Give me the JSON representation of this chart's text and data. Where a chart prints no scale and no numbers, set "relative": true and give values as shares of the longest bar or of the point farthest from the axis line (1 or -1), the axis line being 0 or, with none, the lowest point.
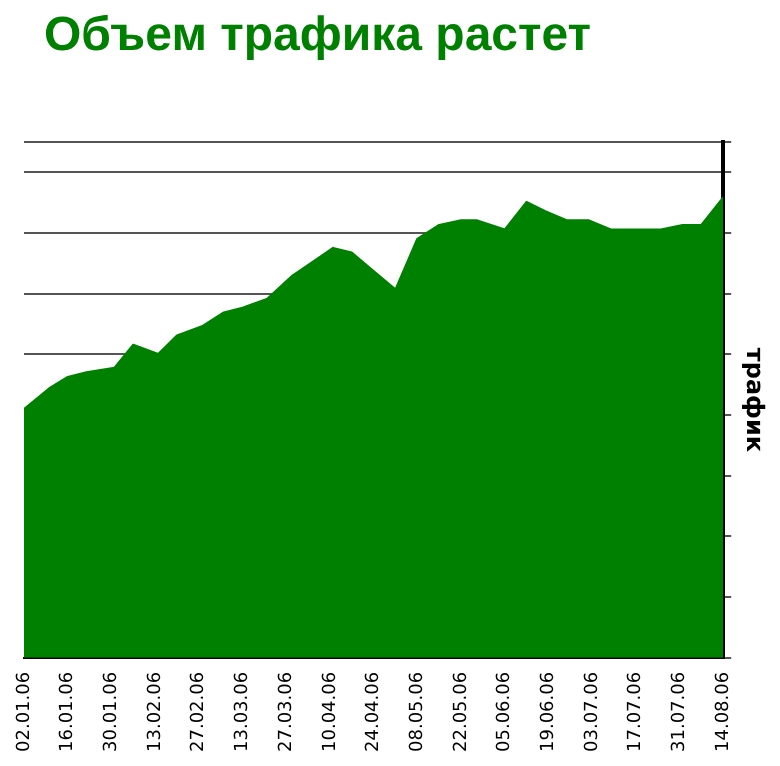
{
  "chart_data": {
    "type": "area",
    "title": "Объем трафика растет",
    "ylabel": "трафик",
    "relative": true,
    "grid": "y",
    "x": [
      "--01-02",
      "--01-10",
      "--01-16",
      "--01-22",
      "--01-31",
      "--02-06",
      "--02-14",
      "--02-20",
      "--02-28",
      "--03-07",
      "--03-13",
      "--03-21",
      "--03-29",
      "--04-11",
      "--04-17",
      "--04-24",
      "--05-01",
      "--05-08",
      "--05-15",
      "--05-22",
      "--05-27",
      "--06-05",
      "--06-12",
      "--06-18",
      "--06-25",
      "--07-02",
      "--07-09",
      "--07-18",
      "--07-25",
      "--08-01",
      "--08-07",
      "--08-14"
    ],
    "xlim": [
      "--01-02",
      "--08-14"
    ],
    "xticks": [
      {
        "value": "--01-02",
        "label": "02.01.06"
      },
      {
        "value": "--01-16",
        "label": "16.01.06"
      },
      {
        "value": "--01-30",
        "label": "30.01.06"
      },
      {
        "value": "--02-13",
        "label": "13.02.06"
      },
      {
        "value": "--02-27",
        "label": "27.02.06"
      },
      {
        "value": "--03-13",
        "label": "13.03.06"
      },
      {
        "value": "--03-27",
        "label": "27.03.06"
      },
      {
        "value": "--04-10",
        "label": "10.04.06"
      },
      {
        "value": "--04-24",
        "label": "24.04.06"
      },
      {
        "value": "--05-08",
        "label": "08.05.06"
      },
      {
        "value": "--05-22",
        "label": "22.05.06"
      },
      {
        "value": "--06-05",
        "label": "05.06.06"
      },
      {
        "value": "--06-19",
        "label": "19.06.06"
      },
      {
        "value": "--07-03",
        "label": "03.07.06"
      },
      {
        "value": "--07-17",
        "label": "17.07.06"
      },
      {
        "value": "--07-31",
        "label": "31.07.06"
      },
      {
        "value": "--08-14",
        "label": "14.08.06"
      }
    ],
    "series": [
      {
        "color": "#008000",
        "values": [
          0.54,
          0.585,
          0.61,
          0.62,
          0.63,
          0.68,
          0.66,
          0.7,
          0.72,
          0.75,
          0.76,
          0.78,
          0.83,
          0.89,
          0.88,
          0.84,
          0.8,
          0.91,
          0.94,
          0.95,
          0.95,
          0.93,
          0.99,
          0.97,
          0.95,
          0.95,
          0.93,
          0.93,
          0.93,
          0.94,
          0.94,
          1
        ]
      }
    ]
  }
}
